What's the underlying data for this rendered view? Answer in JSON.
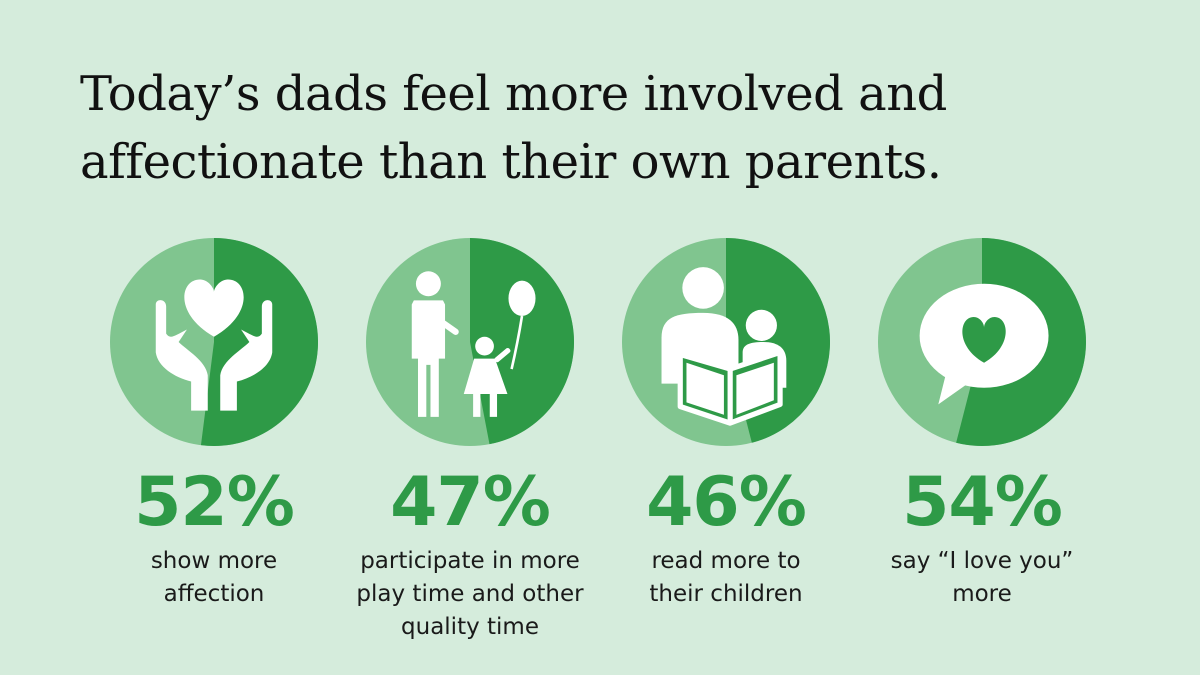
{
  "title_lines": [
    "Today’s dads feel more involved and",
    "affectionate than their own parents."
  ],
  "colors": {
    "background": "#d5ecdc",
    "accent": "#2e9a47",
    "light": "#80c58f",
    "text": "#111111"
  },
  "chart_data": {
    "type": "pie",
    "items": [
      {
        "value": 52,
        "label": "52%",
        "caption": [
          "show more",
          "affection"
        ],
        "icon": "caring-hands-heart-icon"
      },
      {
        "value": 47,
        "label": "47%",
        "caption": [
          "participate in more",
          "play time and other",
          "quality time"
        ],
        "icon": "parent-child-balloon-icon"
      },
      {
        "value": 46,
        "label": "46%",
        "caption": [
          "read more to",
          "their children"
        ],
        "icon": "parent-reading-to-child-icon"
      },
      {
        "value": 54,
        "label": "54%",
        "caption": [
          "say “I love you”",
          "more"
        ],
        "icon": "speech-bubble-heart-icon"
      }
    ]
  }
}
